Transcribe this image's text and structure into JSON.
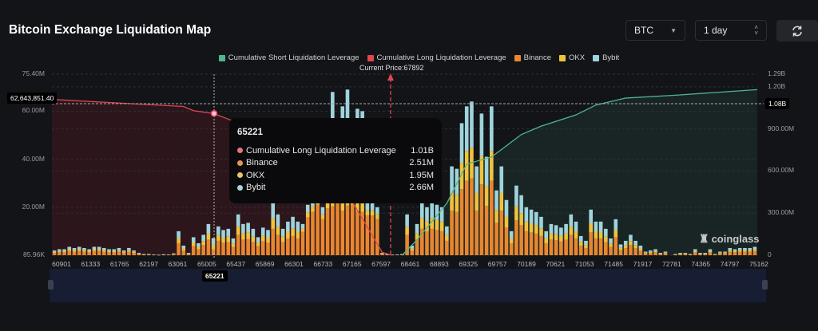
{
  "header": {
    "title": "Bitcoin Exchange Liquidation Map",
    "symbol": "BTC",
    "period": "1 day",
    "refresh_icon": "refresh-icon"
  },
  "watermark": "coinglass",
  "colors": {
    "short": "#4fb68f",
    "long": "#e0464f",
    "binance": "#e8872f",
    "okx": "#f0c33c",
    "bybit": "#9fd4dc",
    "bg": "#131418"
  },
  "legend": [
    "Cumulative Short Liquidation Leverage",
    "Cumulative Long Liquidation Leverage",
    "Binance",
    "OKX",
    "Bybit"
  ],
  "current_price_label": "Current Price:67892",
  "crosshair": {
    "x_label": "65221",
    "left_value": "62,643,851.40",
    "right_value": "1.08B"
  },
  "tooltip": {
    "title": "65221",
    "rows": [
      {
        "label": "Cumulative Long Liquidation Leverage",
        "value": "1.01B",
        "color": "#e9747a"
      },
      {
        "label": "Binance",
        "value": "2.51M",
        "color": "#e7935a"
      },
      {
        "label": "OKX",
        "value": "1.95M",
        "color": "#e9c56a"
      },
      {
        "label": "Bybit",
        "value": "2.66M",
        "color": "#a8d6dc"
      }
    ]
  },
  "chart_data": {
    "type": "bar",
    "stacked": true,
    "left_axis": {
      "ticks": [
        "75.40M",
        "60.00M",
        "40.00M",
        "20.00M",
        "85.96K"
      ],
      "range_M": [
        0,
        75.4
      ]
    },
    "right_axis": {
      "ticks": [
        "1.29B",
        "1.20B",
        "900.00M",
        "600.00M",
        "300.00M",
        "0"
      ],
      "range_B": [
        0,
        1.29
      ]
    },
    "x_ticks": [
      "60901",
      "61333",
      "61765",
      "62197",
      "63061",
      "65005",
      "65437",
      "65869",
      "66301",
      "66733",
      "67165",
      "67597",
      "68461",
      "68893",
      "69325",
      "69757",
      "70189",
      "70621",
      "71053",
      "71485",
      "71917",
      "72781",
      "74365",
      "74797",
      "75162"
    ],
    "current_price": 67892,
    "series_names": [
      "Binance",
      "OKX",
      "Bybit"
    ],
    "bars_M": [
      [
        1,
        0.4,
        0.6
      ],
      [
        1.2,
        0.5,
        0.8
      ],
      [
        1.2,
        0.5,
        0.8
      ],
      [
        1.8,
        0.7,
        1
      ],
      [
        1.5,
        0.6,
        0.9
      ],
      [
        1.8,
        0.7,
        1
      ],
      [
        1.5,
        0.6,
        0.9
      ],
      [
        1.2,
        0.5,
        0.8
      ],
      [
        1.8,
        0.7,
        1
      ],
      [
        1.8,
        0.7,
        1
      ],
      [
        1.5,
        0.6,
        0.9
      ],
      [
        1.2,
        0.5,
        0.8
      ],
      [
        1.2,
        0.5,
        0.8
      ],
      [
        1.5,
        0.6,
        0.9
      ],
      [
        1,
        0.4,
        0.6
      ],
      [
        1.5,
        0.6,
        0.9
      ],
      [
        1,
        0.4,
        0.6
      ],
      [
        0.5,
        0.2,
        0.3
      ],
      [
        0.3,
        0.1,
        0.1
      ],
      [
        0.3,
        0.1,
        0.1
      ],
      [
        0.2,
        0,
        0.1
      ],
      [
        0.1,
        0,
        0.1
      ],
      [
        0.2,
        0.1,
        0.1
      ],
      [
        0.2,
        0,
        0.1
      ],
      [
        0.4,
        0.2,
        0.2
      ],
      [
        5,
        2,
        3
      ],
      [
        2,
        0.8,
        1.2
      ],
      [
        0.5,
        0.2,
        0.3
      ],
      [
        3.8,
        1.5,
        2.2
      ],
      [
        2.5,
        1,
        1.5
      ],
      [
        4.2,
        1.7,
        2.6
      ],
      [
        6.5,
        2.6,
        3.9
      ],
      [
        2.51,
        1.95,
        2.66
      ],
      [
        6,
        2.4,
        3.6
      ],
      [
        5.2,
        2.1,
        3.2
      ],
      [
        5.5,
        2.2,
        3.3
      ],
      [
        3.5,
        1.4,
        2.1
      ],
      [
        8.5,
        3.4,
        5.1
      ],
      [
        6.5,
        2.6,
        3.9
      ],
      [
        6.8,
        2.7,
        4
      ],
      [
        5.5,
        2.2,
        3.3
      ],
      [
        3.8,
        1.5,
        2.2
      ],
      [
        5.8,
        2.3,
        3.4
      ],
      [
        5.2,
        2.1,
        3.2
      ],
      [
        11,
        4.4,
        6.6
      ],
      [
        8.5,
        3.4,
        5.1
      ],
      [
        5.5,
        2.2,
        3.3
      ],
      [
        7,
        2.8,
        4.2
      ],
      [
        8,
        3.2,
        4.8
      ],
      [
        7,
        2.8,
        4.2
      ],
      [
        9.8,
        1.3,
        1.9
      ],
      [
        15.8,
        2.1,
        3.1
      ],
      [
        18,
        2.4,
        3.6
      ],
      [
        21,
        2.8,
        4.2
      ],
      [
        15,
        2,
        3
      ],
      [
        19.5,
        2.6,
        3.9
      ],
      [
        20.4,
        6.8,
        40.8
      ],
      [
        22.5,
        3,
        4.5
      ],
      [
        18.6,
        6.2,
        37.2
      ],
      [
        20.7,
        6.9,
        41.4
      ],
      [
        21,
        2.8,
        4.2
      ],
      [
        18.3,
        6.1,
        36.6
      ],
      [
        18,
        6,
        36
      ],
      [
        16.5,
        2.2,
        3.3
      ],
      [
        16.5,
        2.2,
        3.3
      ],
      [
        15,
        2,
        3
      ],
      [
        0.5,
        0.2,
        0.3
      ],
      [
        0.3,
        0.1,
        0.1
      ],
      [
        0.2,
        0,
        0.1
      ],
      [
        0.2,
        0,
        0.1
      ],
      [
        0.3,
        0.1,
        0.1
      ],
      [
        8.5,
        3.4,
        5.1
      ],
      [
        2,
        0.8,
        1.2
      ],
      [
        6.5,
        2.6,
        3.9
      ],
      [
        11,
        4.4,
        6.6
      ],
      [
        10,
        4,
        6
      ],
      [
        11,
        4.4,
        6.6
      ],
      [
        10.5,
        4.2,
        6.3
      ],
      [
        10,
        4,
        6
      ],
      [
        6,
        2.4,
        3.6
      ],
      [
        18.5,
        7.4,
        11.1
      ],
      [
        18,
        7.2,
        10.8
      ],
      [
        27.5,
        11,
        16.5
      ],
      [
        31,
        12.4,
        18.6
      ],
      [
        32,
        12.8,
        19.2
      ],
      [
        18.5,
        7.4,
        11.1
      ],
      [
        29.5,
        11.8,
        17.7
      ],
      [
        20.5,
        8.2,
        12.3
      ],
      [
        31,
        12.4,
        18.6
      ],
      [
        13.5,
        5.4,
        8.1
      ],
      [
        18.5,
        7.4,
        11.1
      ],
      [
        11.5,
        4.6,
        6.9
      ],
      [
        5,
        2,
        3
      ],
      [
        14.5,
        5.8,
        8.7
      ],
      [
        12.5,
        5,
        7.5
      ],
      [
        10,
        4,
        6
      ],
      [
        9.5,
        3.8,
        5.7
      ],
      [
        9,
        3.6,
        5.4
      ],
      [
        8,
        3.2,
        4.8
      ],
      [
        5,
        2,
        3
      ],
      [
        6.5,
        2.6,
        3.9
      ],
      [
        6.2,
        2.5,
        3.8
      ],
      [
        5.8,
        2.3,
        3.4
      ],
      [
        6.5,
        2.6,
        3.9
      ],
      [
        8.5,
        3.4,
        5.1
      ],
      [
        7,
        2.8,
        4.2
      ],
      [
        4,
        1.6,
        2.4
      ],
      [
        3,
        1.2,
        1.8
      ],
      [
        9.5,
        3.8,
        5.7
      ],
      [
        7,
        2.8,
        4.2
      ],
      [
        7,
        2.8,
        4.2
      ],
      [
        5.5,
        2.2,
        3.3
      ],
      [
        3.5,
        1.4,
        2.1
      ],
      [
        7.5,
        3,
        4.5
      ],
      [
        2.2,
        0.9,
        1.4
      ],
      [
        3,
        1.2,
        1.8
      ],
      [
        4.2,
        1.7,
        2.6
      ],
      [
        3,
        1.2,
        1.8
      ],
      [
        2,
        0.8,
        1.2
      ],
      [
        0.8,
        0.3,
        0.4
      ],
      [
        1,
        0.4,
        0.6
      ],
      [
        1.2,
        0.5,
        0.8
      ],
      [
        0.5,
        0.2,
        0.3
      ],
      [
        0.8,
        0.3,
        0.4
      ],
      [
        0,
        0,
        0
      ],
      [
        0.3,
        0.1,
        0.1
      ],
      [
        0.5,
        0.2,
        0.3
      ],
      [
        0.5,
        0.2,
        0.3
      ],
      [
        0.3,
        0.1,
        0.1
      ],
      [
        1.2,
        0.5,
        0.8
      ],
      [
        0.5,
        0.2,
        0.3
      ],
      [
        0.5,
        0.2,
        0.3
      ],
      [
        1.2,
        0.5,
        0.8
      ],
      [
        0.3,
        0.1,
        0.1
      ],
      [
        0.8,
        0.3,
        0.4
      ],
      [
        0.8,
        0.3,
        0.4
      ],
      [
        1.5,
        0.6,
        0.9
      ],
      [
        1.2,
        0.5,
        0.8
      ],
      [
        1.5,
        0.6,
        0.9
      ],
      [
        1.5,
        0.6,
        0.9
      ],
      [
        1.5,
        0.6,
        0.9
      ],
      [
        1.8,
        0.7,
        1
      ]
    ],
    "long_cumulative_B": [
      [
        0,
        1.11
      ],
      [
        26,
        1.06
      ],
      [
        28,
        1.03
      ],
      [
        32,
        1.01
      ],
      [
        35,
        0.97
      ],
      [
        44,
        0.85
      ],
      [
        53,
        0.6
      ],
      [
        60,
        0.38
      ],
      [
        63,
        0.2
      ],
      [
        66,
        0.02
      ],
      [
        68,
        0
      ]
    ],
    "short_cumulative_B": [
      [
        70,
        0
      ],
      [
        73,
        0.11
      ],
      [
        79,
        0.37
      ],
      [
        83,
        0.65
      ],
      [
        88,
        0.7
      ],
      [
        91,
        0.78
      ],
      [
        94,
        0.86
      ],
      [
        98,
        0.92
      ],
      [
        105,
        1.0
      ],
      [
        109,
        1.07
      ],
      [
        115,
        1.12
      ],
      [
        125,
        1.14
      ],
      [
        141,
        1.18
      ]
    ]
  }
}
